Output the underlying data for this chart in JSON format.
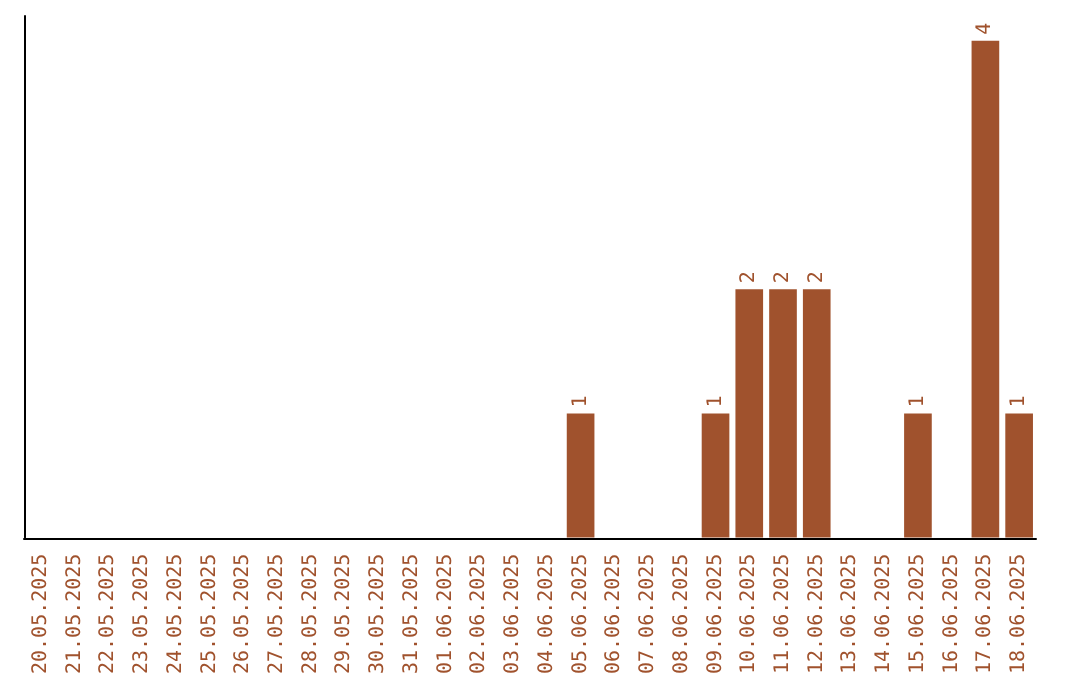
{
  "chart_data": {
    "type": "bar",
    "categories": [
      "20.05.2025",
      "21.05.2025",
      "22.05.2025",
      "23.05.2025",
      "24.05.2025",
      "25.05.2025",
      "26.05.2025",
      "27.05.2025",
      "28.05.2025",
      "29.05.2025",
      "30.05.2025",
      "31.05.2025",
      "01.06.2025",
      "02.06.2025",
      "03.06.2025",
      "04.06.2025",
      "05.06.2025",
      "06.06.2025",
      "07.06.2025",
      "08.06.2025",
      "09.06.2025",
      "10.06.2025",
      "11.06.2025",
      "12.06.2025",
      "13.06.2025",
      "14.06.2025",
      "15.06.2025",
      "16.06.2025",
      "17.06.2025",
      "18.06.2025"
    ],
    "values": [
      null,
      null,
      null,
      null,
      null,
      null,
      null,
      null,
      null,
      null,
      null,
      null,
      null,
      null,
      null,
      null,
      1,
      null,
      null,
      null,
      1,
      2,
      2,
      2,
      null,
      null,
      1,
      null,
      4,
      1
    ],
    "data_labels": true,
    "color": "#a0522d",
    "grid": false
  }
}
